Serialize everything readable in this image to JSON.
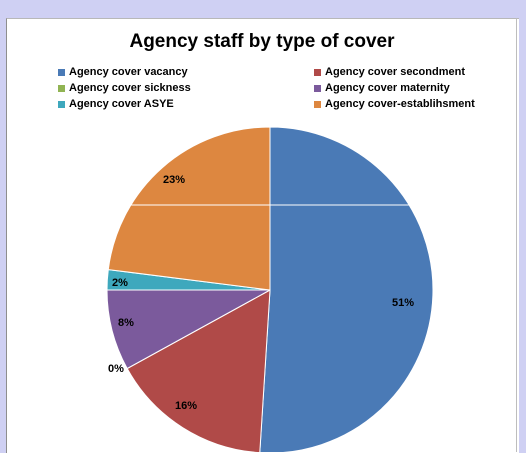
{
  "chart_data": {
    "type": "pie",
    "title": "Agency staff by type of cover",
    "legend_position": "top",
    "slices": [
      {
        "label": "Agency cover vacancy",
        "value": 51,
        "display": "51%",
        "color": "#4a7ab6"
      },
      {
        "label": "Agency cover secondment",
        "value": 16,
        "display": "16%",
        "color": "#b04a48"
      },
      {
        "label": "Agency cover sickness",
        "value": 0,
        "display": "0%",
        "color": "#91b453"
      },
      {
        "label": "Agency cover maternity",
        "value": 8,
        "display": "8%",
        "color": "#7b5a9c"
      },
      {
        "label": "Agency  cover ASYE",
        "value": 2,
        "display": "2%",
        "color": "#3ea8bd"
      },
      {
        "label": "Agency cover-establihsment",
        "value": 23,
        "display": "23%",
        "color": "#dd8740"
      }
    ]
  }
}
